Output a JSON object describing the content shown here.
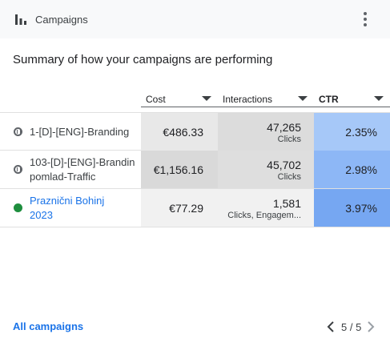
{
  "header": {
    "title": "Campaigns",
    "chart_icon": "bar-chart-icon",
    "menu_icon": "more-vert-icon"
  },
  "summary": "Summary of how your campaigns are performing",
  "columns": [
    {
      "label": "Cost"
    },
    {
      "label": "Interactions"
    },
    {
      "label": "CTR"
    }
  ],
  "rows": [
    {
      "status": "paused",
      "name_line1": "1-[D]-[ENG]-Branding",
      "name_line2": "",
      "cost": "€486.33",
      "interactions": "47,265",
      "interactions_type": "Clicks",
      "ctr": "2.35%",
      "cost_bg": "#e8e8e8",
      "int_bg": "#dcdcdc",
      "ctr_bg": "#a6c8f8"
    },
    {
      "status": "paused",
      "name_line1": "103-[D]-[ENG]-Brandin",
      "name_line2": "pomlad-Traffic",
      "cost": "€1,156.16",
      "interactions": "45,702",
      "interactions_type": "Clicks",
      "ctr": "2.98%",
      "cost_bg": "#d9d9d9",
      "int_bg": "#dedede",
      "ctr_bg": "#8db7f6"
    },
    {
      "status": "active",
      "name_line1": "Praznični Bohinj",
      "name_line2": "2023",
      "cost": "€77.29",
      "interactions": "1,581",
      "interactions_type": "Clicks, Engagem...",
      "ctr": "3.97%",
      "cost_bg": "#f1f1f1",
      "int_bg": "#f1f1f1",
      "ctr_bg": "#76a7f2"
    }
  ],
  "footer": {
    "all_campaigns": "All campaigns",
    "page": "5 / 5"
  },
  "colors": {
    "link": "#1a73e8",
    "active_status": "#1e8e3e"
  }
}
